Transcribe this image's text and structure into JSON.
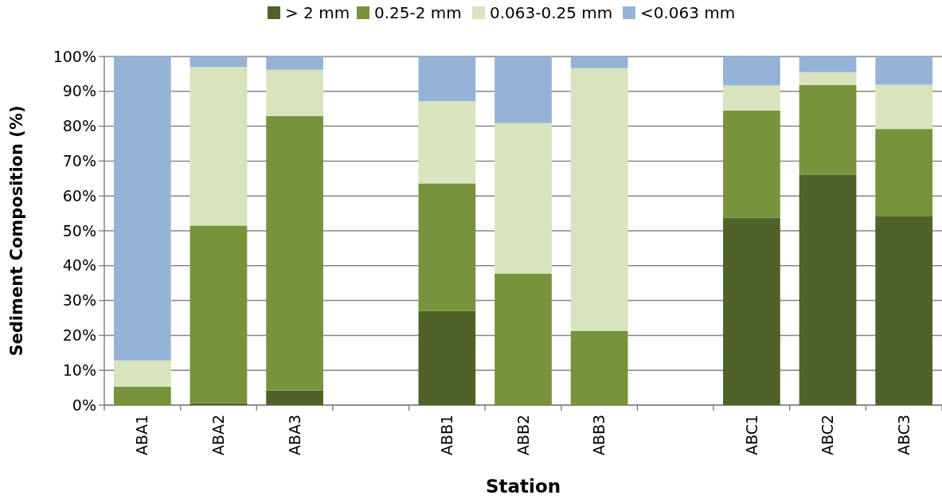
{
  "chart_data": {
    "type": "bar",
    "stacked": true,
    "xlabel": "Station",
    "ylabel": "Sediment Composition (%)",
    "categories": [
      "ABA1",
      "ABA2",
      "ABA3",
      null,
      "ABB1",
      "ABB2",
      "ABB3",
      null,
      "ABC1",
      "ABC2",
      "ABC3"
    ],
    "series": [
      {
        "name": "> 2 mm",
        "color": "#4f6228",
        "values": [
          0,
          0.5,
          4.2,
          null,
          27,
          0,
          0,
          null,
          53.7,
          66.0,
          54.1
        ]
      },
      {
        "name": "0.25-2 mm",
        "color": "#77933c",
        "values": [
          5.3,
          51.0,
          78.7,
          null,
          36.6,
          37.7,
          21.3,
          null,
          30.8,
          25.8,
          25.1
        ]
      },
      {
        "name": "0.063-0.25 mm",
        "color": "#d7e4bd",
        "values": [
          7.5,
          45.5,
          13.3,
          null,
          23.6,
          43.2,
          75.4,
          null,
          7.2,
          3.7,
          12.7
        ]
      },
      {
        "name": "<0.063 mm",
        "color": "#95b3d7",
        "values": [
          87.2,
          3,
          3.8,
          null,
          12.8,
          19.1,
          3.3,
          null,
          8.3,
          4.5,
          8.1
        ]
      }
    ],
    "ylim": [
      0,
      100
    ],
    "yticks": [
      {
        "value": 0,
        "label": "0%"
      },
      {
        "value": 10,
        "label": "10%"
      },
      {
        "value": 20,
        "label": "20%"
      },
      {
        "value": 30,
        "label": "30%"
      },
      {
        "value": 40,
        "label": "40%"
      },
      {
        "value": 50,
        "label": "50%"
      },
      {
        "value": 60,
        "label": "60%"
      },
      {
        "value": 70,
        "label": "70%"
      },
      {
        "value": 80,
        "label": "80%"
      },
      {
        "value": 90,
        "label": "90%"
      },
      {
        "value": 100,
        "label": "100%"
      }
    ],
    "grid": "y",
    "legend": "top"
  }
}
